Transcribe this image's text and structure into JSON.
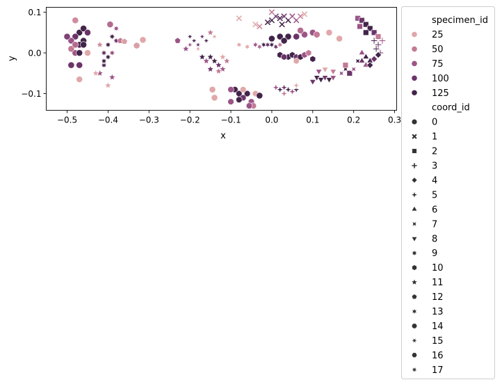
{
  "chart_data": {
    "type": "scatter",
    "title": "",
    "xlabel": "x",
    "ylabel": "y",
    "xlim": [
      -0.551,
      0.305
    ],
    "ylim": [
      -0.141,
      0.112
    ],
    "grid": false,
    "x_ticks": [
      -0.5,
      -0.4,
      -0.3,
      -0.2,
      -0.1,
      0.0,
      0.1,
      0.2,
      0.3
    ],
    "x_tick_labels": [
      "−0.5",
      "−0.4",
      "−0.3",
      "−0.2",
      "−0.1",
      "0.0",
      "0.1",
      "0.2",
      "0.3"
    ],
    "y_ticks": [
      -0.1,
      0.0,
      0.1
    ],
    "y_tick_labels": [
      "−0.1",
      "0.0",
      "0.1"
    ],
    "legend": {
      "placement": "outside-right",
      "hue_title": "specimen_id",
      "hue_entries": [
        25,
        50,
        75,
        100,
        125
      ],
      "style_title": "coord_id",
      "style_entries": [
        0,
        1,
        2,
        3,
        4,
        5,
        6,
        7,
        8,
        9,
        10,
        11,
        12,
        13,
        14,
        15,
        16,
        17
      ]
    },
    "hue_range": [
      0,
      140
    ],
    "colors": {
      "low": "#f0c4c0",
      "q25": "#e0a8aa",
      "q50": "#c27a95",
      "q75": "#9c5487",
      "q100": "#6b3469",
      "high": "#2a1a38"
    },
    "point_fields": [
      "x",
      "y",
      "specimen_id",
      "coord_id"
    ],
    "points": [
      [
        -0.47,
        0.05,
        125,
        0
      ],
      [
        -0.46,
        0.06,
        125,
        0
      ],
      [
        -0.48,
        0.04,
        100,
        0
      ],
      [
        -0.46,
        0.03,
        125,
        0
      ],
      [
        -0.45,
        0.05,
        100,
        0
      ],
      [
        -0.47,
        0.02,
        125,
        0
      ],
      [
        -0.49,
        0.03,
        75,
        0
      ],
      [
        -0.48,
        0.0,
        75,
        0
      ],
      [
        -0.46,
        0.02,
        125,
        0
      ],
      [
        -0.49,
        -0.03,
        100,
        0
      ],
      [
        -0.47,
        -0.03,
        100,
        0
      ],
      [
        -0.48,
        0.08,
        40,
        0
      ],
      [
        -0.47,
        -0.065,
        25,
        0
      ],
      [
        -0.49,
        0.01,
        50,
        0
      ],
      [
        -0.45,
        0.0,
        25,
        0
      ],
      [
        -0.48,
        0.02,
        60,
        0
      ],
      [
        -0.47,
        0.0,
        125,
        0
      ],
      [
        -0.5,
        0.04,
        90,
        0
      ],
      [
        -0.39,
        0.04,
        125,
        9
      ],
      [
        -0.38,
        0.03,
        100,
        9
      ],
      [
        -0.4,
        0.02,
        125,
        9
      ],
      [
        -0.41,
        0.0,
        100,
        9
      ],
      [
        -0.4,
        -0.01,
        125,
        9
      ],
      [
        -0.41,
        -0.03,
        125,
        9
      ],
      [
        -0.42,
        -0.05,
        75,
        11
      ],
      [
        -0.39,
        -0.06,
        75,
        11
      ],
      [
        -0.4,
        -0.08,
        25,
        11
      ],
      [
        -0.395,
        0.07,
        60,
        0
      ],
      [
        -0.38,
        0.06,
        75,
        9
      ],
      [
        -0.37,
        0.03,
        50,
        12
      ],
      [
        -0.42,
        0.02,
        40,
        11
      ],
      [
        -0.41,
        -0.02,
        125,
        9
      ],
      [
        -0.39,
        0.0,
        75,
        9
      ],
      [
        -0.43,
        -0.05,
        25,
        11
      ],
      [
        -0.36,
        0.028,
        30,
        12
      ],
      [
        -0.315,
        0.032,
        25,
        0
      ],
      [
        -0.33,
        0.018,
        30,
        0
      ],
      [
        -0.2,
        0.04,
        125,
        15
      ],
      [
        -0.19,
        0.03,
        125,
        15
      ],
      [
        -0.18,
        0.02,
        100,
        15
      ],
      [
        -0.2,
        0.02,
        75,
        15
      ],
      [
        -0.17,
        0.04,
        100,
        15
      ],
      [
        -0.16,
        0.03,
        125,
        15
      ],
      [
        -0.21,
        0.01,
        75,
        11
      ],
      [
        -0.15,
        0.05,
        50,
        11
      ],
      [
        -0.14,
        0.04,
        25,
        15
      ],
      [
        -0.23,
        0.03,
        75,
        12
      ],
      [
        -0.18,
        0.01,
        25,
        15
      ],
      [
        -0.15,
        -0.01,
        125,
        11
      ],
      [
        -0.14,
        -0.02,
        125,
        11
      ],
      [
        -0.13,
        -0.03,
        100,
        11
      ],
      [
        -0.16,
        -0.02,
        75,
        11
      ],
      [
        -0.12,
        -0.04,
        75,
        11
      ],
      [
        -0.15,
        -0.04,
        100,
        11
      ],
      [
        -0.11,
        -0.02,
        50,
        11
      ],
      [
        -0.12,
        -0.01,
        25,
        11
      ],
      [
        -0.17,
        -0.01,
        125,
        11
      ],
      [
        -0.13,
        -0.045,
        50,
        11
      ],
      [
        -0.09,
        -0.09,
        125,
        14
      ],
      [
        -0.08,
        -0.1,
        125,
        14
      ],
      [
        -0.07,
        -0.11,
        100,
        14
      ],
      [
        -0.06,
        -0.1,
        125,
        14
      ],
      [
        -0.08,
        -0.115,
        125,
        14
      ],
      [
        -0.1,
        -0.09,
        75,
        14
      ],
      [
        -0.05,
        -0.12,
        75,
        14
      ],
      [
        -0.04,
        -0.1,
        25,
        14
      ],
      [
        -0.03,
        -0.105,
        125,
        0
      ],
      [
        -0.1,
        -0.12,
        75,
        14
      ],
      [
        -0.045,
        -0.13,
        50,
        14
      ],
      [
        -0.07,
        -0.09,
        25,
        14
      ],
      [
        -0.145,
        -0.09,
        25,
        0
      ],
      [
        -0.14,
        -0.11,
        25,
        0
      ],
      [
        -0.055,
        -0.13,
        75,
        14
      ],
      [
        -0.02,
        0.02,
        125,
        13
      ],
      [
        -0.01,
        0.02,
        100,
        13
      ],
      [
        0.0,
        0.02,
        125,
        13
      ],
      [
        0.01,
        0.015,
        100,
        13
      ],
      [
        -0.04,
        0.02,
        75,
        13
      ],
      [
        -0.06,
        0.015,
        25,
        13
      ],
      [
        -0.08,
        0.02,
        25,
        13
      ],
      [
        0.02,
        0.02,
        50,
        13
      ],
      [
        -0.03,
        0.015,
        60,
        13
      ],
      [
        0.0,
        0.08,
        125,
        1
      ],
      [
        0.01,
        0.09,
        100,
        1
      ],
      [
        0.02,
        0.085,
        125,
        1
      ],
      [
        0.03,
        0.09,
        100,
        1
      ],
      [
        0.04,
        0.08,
        125,
        1
      ],
      [
        0.05,
        0.09,
        75,
        1
      ],
      [
        -0.01,
        0.075,
        125,
        1
      ],
      [
        0.06,
        0.08,
        75,
        1
      ],
      [
        0.07,
        0.09,
        50,
        1
      ],
      [
        0.08,
        0.095,
        25,
        1
      ],
      [
        -0.04,
        0.07,
        25,
        1
      ],
      [
        -0.08,
        0.085,
        25,
        1
      ],
      [
        -0.03,
        0.065,
        40,
        1
      ],
      [
        0.0,
        0.1,
        50,
        1
      ],
      [
        0.025,
        0.07,
        125,
        1
      ],
      [
        0.0,
        0.035,
        125,
        0
      ],
      [
        0.02,
        0.04,
        125,
        0
      ],
      [
        0.04,
        0.04,
        125,
        0
      ],
      [
        0.06,
        0.04,
        100,
        0
      ],
      [
        0.08,
        0.045,
        75,
        0
      ],
      [
        0.1,
        0.05,
        75,
        0
      ],
      [
        0.11,
        0.045,
        50,
        0
      ],
      [
        0.07,
        0.055,
        60,
        0
      ],
      [
        0.03,
        0.03,
        125,
        0
      ],
      [
        0.14,
        0.05,
        25,
        0
      ],
      [
        0.165,
        0.035,
        25,
        0
      ],
      [
        0.02,
        -0.005,
        125,
        10
      ],
      [
        0.04,
        -0.01,
        125,
        10
      ],
      [
        0.05,
        -0.005,
        125,
        10
      ],
      [
        0.06,
        -0.01,
        100,
        10
      ],
      [
        0.07,
        -0.01,
        125,
        10
      ],
      [
        0.08,
        -0.005,
        75,
        10
      ],
      [
        0.1,
        -0.015,
        125,
        10
      ],
      [
        0.03,
        -0.01,
        100,
        10
      ],
      [
        0.09,
        0.0,
        50,
        10
      ],
      [
        0.06,
        -0.02,
        25,
        10
      ],
      [
        0.02,
        -0.09,
        125,
        5
      ],
      [
        0.03,
        -0.085,
        100,
        5
      ],
      [
        0.04,
        -0.09,
        125,
        5
      ],
      [
        0.05,
        -0.095,
        75,
        5
      ],
      [
        0.01,
        -0.085,
        75,
        5
      ],
      [
        0.06,
        -0.09,
        125,
        5
      ],
      [
        0.03,
        -0.1,
        50,
        5
      ],
      [
        0.06,
        -0.08,
        25,
        5
      ],
      [
        0.11,
        -0.06,
        125,
        8
      ],
      [
        0.12,
        -0.065,
        125,
        8
      ],
      [
        0.13,
        -0.06,
        100,
        8
      ],
      [
        0.14,
        -0.065,
        125,
        8
      ],
      [
        0.1,
        -0.07,
        100,
        8
      ],
      [
        0.15,
        -0.06,
        75,
        8
      ],
      [
        0.13,
        -0.04,
        25,
        8
      ],
      [
        0.15,
        -0.045,
        50,
        8
      ],
      [
        0.115,
        -0.045,
        75,
        8
      ],
      [
        0.21,
        0.085,
        75,
        2
      ],
      [
        0.22,
        0.08,
        100,
        2
      ],
      [
        0.23,
        0.07,
        125,
        2
      ],
      [
        0.24,
        0.06,
        125,
        2
      ],
      [
        0.25,
        0.05,
        100,
        2
      ],
      [
        0.23,
        0.05,
        125,
        2
      ],
      [
        0.215,
        0.065,
        75,
        2
      ],
      [
        0.26,
        0.04,
        50,
        2
      ],
      [
        0.25,
        0.03,
        125,
        3
      ],
      [
        0.26,
        0.02,
        100,
        3
      ],
      [
        0.27,
        0.03,
        75,
        3
      ],
      [
        0.255,
        0.01,
        125,
        3
      ],
      [
        0.265,
        0.0,
        100,
        3
      ],
      [
        0.23,
        -0.01,
        125,
        6
      ],
      [
        0.22,
        -0.02,
        100,
        6
      ],
      [
        0.24,
        -0.02,
        125,
        6
      ],
      [
        0.23,
        -0.03,
        75,
        6
      ],
      [
        0.22,
        0.0,
        75,
        6
      ],
      [
        0.18,
        -0.04,
        125,
        7
      ],
      [
        0.19,
        -0.05,
        100,
        2
      ],
      [
        0.2,
        -0.04,
        75,
        7
      ],
      [
        0.18,
        -0.03,
        50,
        2
      ],
      [
        0.21,
        -0.02,
        125,
        7
      ],
      [
        0.17,
        -0.05,
        75,
        7
      ],
      [
        0.24,
        -0.03,
        125,
        4
      ],
      [
        0.25,
        -0.015,
        100,
        4
      ],
      [
        0.26,
        -0.005,
        125,
        4
      ]
    ]
  }
}
